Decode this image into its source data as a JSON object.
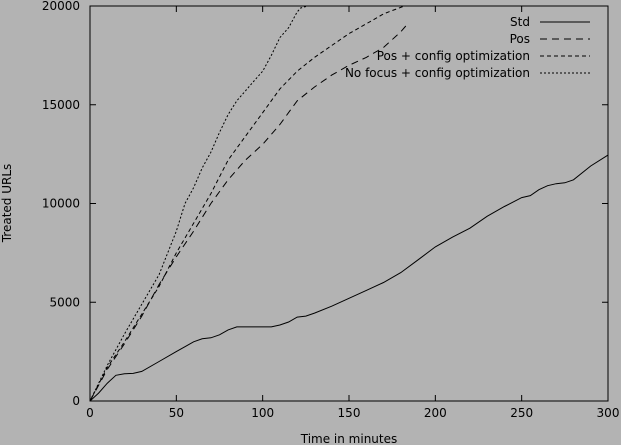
{
  "chart_data": {
    "type": "line",
    "title": "",
    "xlabel": "Time in minutes",
    "ylabel": "Treated URLs",
    "xlim": [
      0,
      300
    ],
    "ylim": [
      0,
      20000
    ],
    "xticks": [
      0,
      50,
      100,
      150,
      200,
      250,
      300
    ],
    "yticks": [
      0,
      5000,
      10000,
      15000,
      20000
    ],
    "grid": false,
    "legend_position": "top-right",
    "series": [
      {
        "name": "Std",
        "dash": "",
        "x": [
          0,
          5,
          10,
          15,
          20,
          25,
          30,
          40,
          50,
          55,
          60,
          65,
          70,
          75,
          80,
          85,
          90,
          95,
          100,
          105,
          110,
          115,
          120,
          125,
          130,
          140,
          150,
          160,
          170,
          180,
          190,
          200,
          210,
          220,
          230,
          240,
          250,
          255,
          260,
          265,
          270,
          275,
          280,
          290,
          300
        ],
        "y": [
          0,
          400,
          900,
          1300,
          1380,
          1400,
          1500,
          2000,
          2500,
          2750,
          3000,
          3150,
          3200,
          3350,
          3600,
          3750,
          3750,
          3750,
          3750,
          3750,
          3850,
          4000,
          4250,
          4300,
          4450,
          4800,
          5200,
          5600,
          6000,
          6500,
          7150,
          7800,
          8300,
          8750,
          9350,
          9850,
          10300,
          10400,
          10700,
          10900,
          11000,
          11050,
          11200,
          11900,
          12450
        ]
      },
      {
        "name": "Pos",
        "dash": "7,5",
        "x": [
          0,
          10,
          20,
          30,
          40,
          50,
          60,
          70,
          80,
          90,
          100,
          110,
          120,
          130,
          140,
          150,
          160,
          170,
          175,
          180,
          184
        ],
        "y": [
          0,
          1600,
          2900,
          4300,
          5900,
          7300,
          8600,
          10000,
          11200,
          12200,
          13000,
          14000,
          15200,
          15900,
          16500,
          17000,
          17400,
          17900,
          18300,
          18700,
          19100
        ]
      },
      {
        "name": "Pos + config optimization",
        "dash": "4,3",
        "x": [
          0,
          10,
          20,
          30,
          40,
          50,
          60,
          70,
          80,
          90,
          100,
          110,
          120,
          130,
          140,
          150,
          160,
          170,
          182
        ],
        "y": [
          0,
          1700,
          3000,
          4400,
          5800,
          7500,
          9000,
          10500,
          12200,
          13400,
          14600,
          15800,
          16700,
          17400,
          18000,
          18600,
          19100,
          19600,
          20000
        ]
      },
      {
        "name": "No focus + config optimization",
        "dash": "2,2",
        "x": [
          0,
          10,
          20,
          30,
          40,
          50,
          55,
          60,
          65,
          70,
          75,
          80,
          85,
          90,
          95,
          100,
          105,
          110,
          115,
          120,
          122,
          126
        ],
        "y": [
          0,
          1800,
          3400,
          4900,
          6400,
          8600,
          10000,
          10800,
          11800,
          12600,
          13600,
          14500,
          15200,
          15700,
          16200,
          16700,
          17500,
          18400,
          18900,
          19700,
          19900,
          20000
        ]
      }
    ]
  }
}
